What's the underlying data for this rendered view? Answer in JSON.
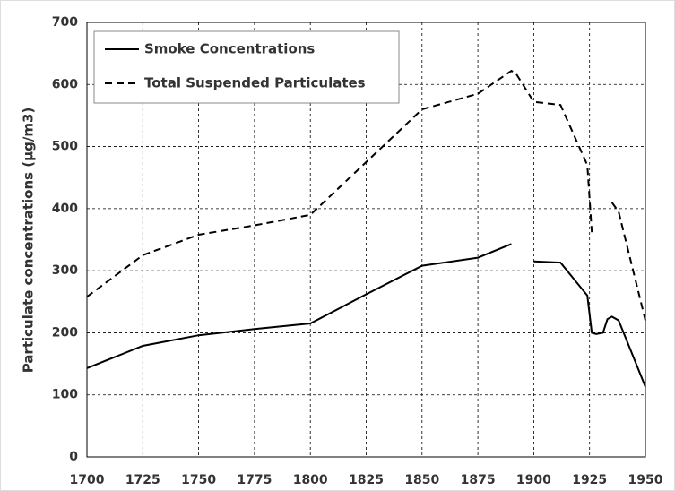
{
  "chart_data": {
    "type": "line",
    "y_label": "Particulate concentrations (µg/m3)",
    "x": [
      1700,
      1725,
      1750,
      1775,
      1800,
      1825,
      1850,
      1875,
      1890,
      1892,
      1900,
      1912,
      1924,
      1926,
      1928,
      1931,
      1933,
      1935,
      1938,
      1950
    ],
    "series": [
      {
        "name": "Smoke Concentrations",
        "color": "#000000",
        "dash": "solid",
        "values": [
          143,
          179,
          196,
          206,
          215,
          262,
          308,
          321,
          343,
          null,
          315,
          313,
          260,
          200,
          198,
          200,
          222,
          226,
          220,
          113
        ]
      },
      {
        "name": "Total Suspended Particulates",
        "color": "#000000",
        "dash": "dashed",
        "values": [
          258,
          325,
          358,
          373,
          390,
          475,
          560,
          585,
          622,
          618,
          572,
          567,
          470,
          362,
          null,
          365,
          null,
          410,
          395,
          220
        ]
      }
    ],
    "xlim": [
      1700,
      1950
    ],
    "xticks": [
      1700,
      1725,
      1750,
      1775,
      1800,
      1825,
      1850,
      1875,
      1900,
      1925,
      1950
    ],
    "ylim": [
      0,
      700
    ],
    "yticks": [
      0,
      100,
      200,
      300,
      400,
      500,
      600,
      700
    ],
    "grid": true,
    "legend": "upper left"
  }
}
